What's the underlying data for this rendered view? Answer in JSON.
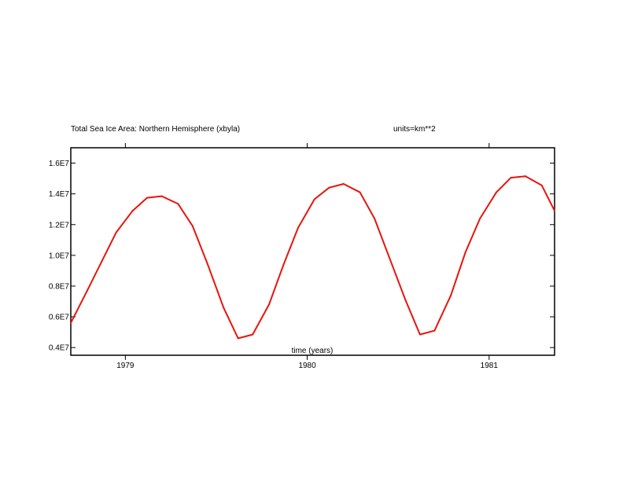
{
  "chart_data": {
    "type": "line",
    "title": "Total Sea Ice Area: Northern Hemisphere (xbyla)",
    "units_label": "units=km**2",
    "xlabel": "time (years)",
    "ylabel": "",
    "xlim": [
      1978.7,
      1981.36
    ],
    "ylim": [
      3500000.0,
      17000000.0
    ],
    "y_ticks": [
      {
        "value": 4000000.0,
        "label": "0.4E7"
      },
      {
        "value": 6000000.0,
        "label": "0.6E7"
      },
      {
        "value": 8000000.0,
        "label": "0.8E7"
      },
      {
        "value": 10000000.0,
        "label": "1.0E7"
      },
      {
        "value": 12000000.0,
        "label": "1.2E7"
      },
      {
        "value": 14000000.0,
        "label": "1.4E7"
      },
      {
        "value": 16000000.0,
        "label": "1.6E7"
      }
    ],
    "x_ticks": [
      {
        "value": 1979.0,
        "label": "1979"
      },
      {
        "value": 1980.0,
        "label": "1980"
      },
      {
        "value": 1981.0,
        "label": "1981"
      }
    ],
    "grid": false,
    "line_color": "#e8140c",
    "series": [
      {
        "x": [
          1978.7,
          1978.79,
          1978.87,
          1978.95,
          1979.04,
          1979.12,
          1979.2,
          1979.29,
          1979.37,
          1979.45,
          1979.54,
          1979.62,
          1979.7,
          1979.79,
          1979.87,
          1979.95,
          1980.04,
          1980.12,
          1980.2,
          1980.29,
          1980.37,
          1980.45,
          1980.54,
          1980.62,
          1980.7,
          1980.79,
          1980.87,
          1980.95,
          1981.04,
          1981.12,
          1981.2,
          1981.29,
          1981.36
        ],
        "y": [
          5600000.0,
          7700000.0,
          9600000.0,
          11500000.0,
          12900000.0,
          13750000.0,
          13850000.0,
          13350000.0,
          11900000.0,
          9500000.0,
          6600000.0,
          4600000.0,
          4850000.0,
          6800000.0,
          9400000.0,
          11800000.0,
          13650000.0,
          14400000.0,
          14650000.0,
          14100000.0,
          12400000.0,
          9900000.0,
          7100000.0,
          4850000.0,
          5100000.0,
          7400000.0,
          10200000.0,
          12400000.0,
          14100000.0,
          15050000.0,
          15150000.0,
          14550000.0,
          12900000.0
        ]
      }
    ]
  }
}
